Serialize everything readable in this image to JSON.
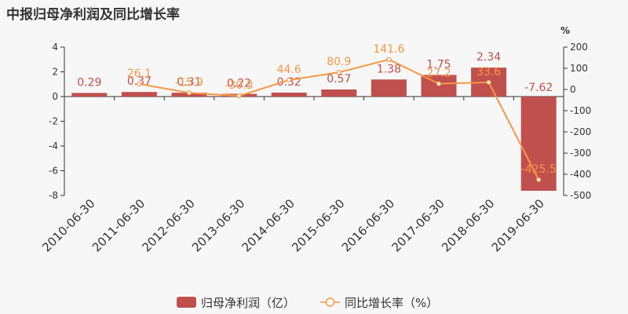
{
  "chart_data": {
    "type": "bar+line",
    "title": "中报归母净利润及同比增长率",
    "categories": [
      "2010-06-30",
      "2011-06-30",
      "2012-06-30",
      "2013-06-30",
      "2014-06-30",
      "2015-06-30",
      "2016-06-30",
      "2017-06-30",
      "2018-06-30",
      "2019-06-30"
    ],
    "series": [
      {
        "name": "归母净利润（亿）",
        "type": "bar",
        "axis": "left",
        "color": "#c0504d",
        "values": [
          0.29,
          0.37,
          0.31,
          0.22,
          0.32,
          0.57,
          1.38,
          1.75,
          2.34,
          -7.62
        ],
        "labels": [
          "0.29",
          "0.37",
          "0.31",
          "0.22",
          "0.32",
          "0.57",
          "1.38",
          "1.75",
          "2.34",
          "-7.62"
        ]
      },
      {
        "name": "同比增长率（%）",
        "type": "line",
        "axis": "right",
        "color": "#f79646",
        "values": [
          null,
          26.1,
          -15.9,
          -30.3,
          44.6,
          80.9,
          141.6,
          27.2,
          33.6,
          -425.5
        ],
        "labels": [
          "",
          "26.1",
          "-15.9",
          "-30.3",
          "44.6",
          "80.9",
          "141.6",
          "27.2",
          "33.6",
          "-425.5"
        ]
      }
    ],
    "y_left": {
      "min": -8,
      "max": 4,
      "ticks": [
        "4",
        "2",
        "0",
        "-2",
        "-4",
        "-6",
        "-8"
      ]
    },
    "y_right": {
      "min": -500,
      "max": 200,
      "unit": "%",
      "ticks": [
        "200",
        "100",
        "0",
        "-100",
        "-200",
        "-300",
        "-400",
        "-500"
      ]
    },
    "grid": false,
    "legend": "bottom"
  }
}
